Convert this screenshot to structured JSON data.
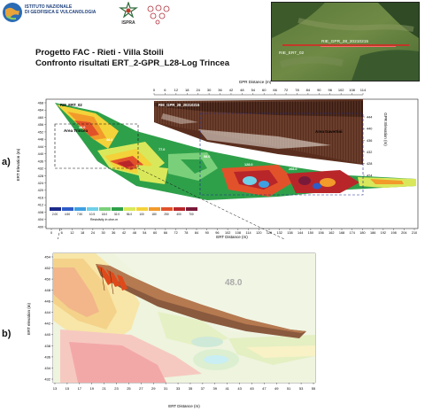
{
  "header": {
    "ingv_name_line1": "ISTITUTO NAZIONALE",
    "ingv_name_line2": "DI GEOFISICA E VULCANOLOGIA",
    "ispra_label": "ISPRA",
    "title_line1": "Progetto FAC - Rieti - Villa Stoili",
    "title_line2": "Confronto risultati ERT_2-GPR_L28-Log Trincea"
  },
  "map": {
    "gpr_label": "RIE_GPR_28_20210215",
    "ert_label": "RIE_ERT_02"
  },
  "panel_a": {
    "label": "a)",
    "gpr_axis_title": "GPR Distance (m)",
    "gpr_ticks": [
      "0",
      "6",
      "12",
      "18",
      "24",
      "30",
      "36",
      "42",
      "48",
      "54",
      "60",
      "66",
      "72",
      "78",
      "84",
      "90",
      "96",
      "102",
      "108",
      "114"
    ],
    "ert_axis_title": "ERT Distance (m)",
    "ert_ticks": [
      "0",
      "6",
      "12",
      "18",
      "24",
      "30",
      "36",
      "42",
      "48",
      "54",
      "60",
      "66",
      "72",
      "78",
      "84",
      "90",
      "96",
      "102",
      "108",
      "114",
      "120",
      "126",
      "132",
      "138",
      "144",
      "150",
      "156",
      "162",
      "168",
      "174",
      "180",
      "186",
      "192",
      "198",
      "204",
      "210"
    ],
    "ert_elev_title": "ERT Elevation (m)",
    "ert_elev_ticks": [
      "468",
      "464",
      "460",
      "456",
      "452",
      "448",
      "444",
      "440",
      "436",
      "432",
      "428",
      "424",
      "420",
      "416",
      "412",
      "408",
      "404",
      "400"
    ],
    "gpr_elev_title": "GPR Elevation (m)",
    "gpr_elev_ticks": [
      "444",
      "440",
      "436",
      "432",
      "428",
      "424"
    ],
    "ert_profile_label": "RIE_ERT_02",
    "gpr_profile_label": "RIE_GPR_28_20210215",
    "area_trincea": "Area Trincea",
    "area_travertini": "Area travertini",
    "contour_labels": [
      "48.0",
      "77.0",
      "48.0",
      "128.0",
      "268.0",
      "180.0",
      "58.0"
    ],
    "resistivity_title": "Resistivity in ohm.m",
    "resistivity_values": [
      "2.00",
      "4.50",
      "7.50",
      "10.5",
      "18.0",
      "32.0",
      "56.0",
      "100",
      "180",
      "250",
      "400",
      "700"
    ],
    "resistivity_colors": [
      "#1c2a8a",
      "#2e5cc8",
      "#3ea0e0",
      "#6fd0e8",
      "#7ad07a",
      "#2fa04a",
      "#d9e85a",
      "#f3d23a",
      "#f29a2a",
      "#e2522a",
      "#b8262a",
      "#7a1a3a"
    ]
  },
  "panel_b": {
    "label": "b)",
    "y_axis_title": "ERT elevation (m)",
    "y_ticks": [
      "454",
      "452",
      "450",
      "448",
      "446",
      "444",
      "442",
      "440",
      "438",
      "436",
      "434",
      "432"
    ],
    "x_axis_title": "ERT Distance (m)",
    "x_ticks": [
      "13",
      "15",
      "17",
      "19",
      "21",
      "23",
      "25",
      "27",
      "29",
      "31",
      "33",
      "35",
      "37",
      "39",
      "41",
      "43",
      "45",
      "47",
      "49",
      "51",
      "53",
      "55"
    ],
    "contour_label": "48.0"
  }
}
